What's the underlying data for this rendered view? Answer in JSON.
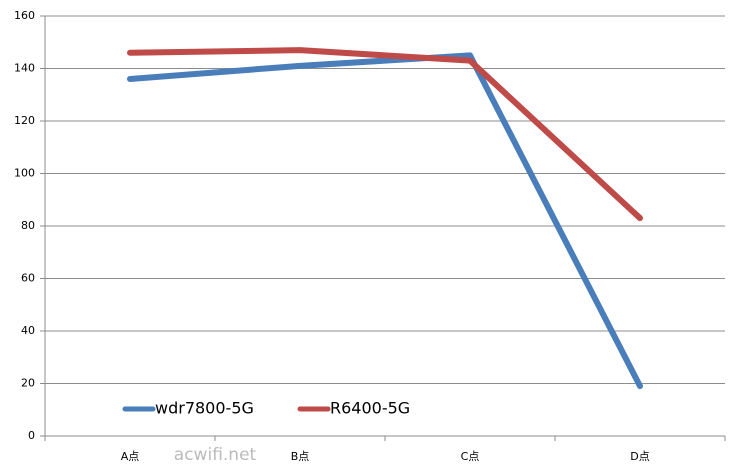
{
  "chart_data": {
    "type": "line",
    "categories": [
      "A点",
      "B点",
      "C点",
      "D点"
    ],
    "series": [
      {
        "name": "wdr7800-5G",
        "color": "#4a7ebb",
        "values": [
          136,
          141,
          145,
          19
        ]
      },
      {
        "name": "R6400-5G",
        "color": "#be4b48",
        "values": [
          146,
          147,
          143,
          83
        ]
      }
    ],
    "ylim": [
      0,
      160
    ],
    "yticks": [
      0,
      20,
      40,
      60,
      80,
      100,
      120,
      140,
      160
    ],
    "grid": true,
    "legend": "bottom-left"
  },
  "watermark": "acwifi.net"
}
